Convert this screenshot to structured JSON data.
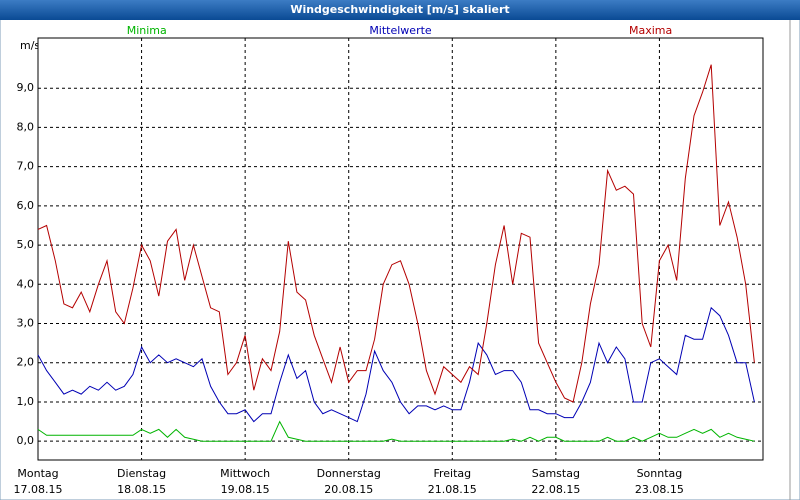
{
  "chart_data": {
    "type": "line",
    "title": "Windgeschwindigkeit [m/s] skaliert",
    "y_label": "m/s",
    "x": [
      0,
      2,
      4,
      6,
      8,
      10,
      12,
      14,
      16,
      18,
      20,
      22,
      24,
      26,
      28,
      30,
      32,
      34,
      36,
      38,
      40,
      42,
      44,
      46,
      48,
      50,
      52,
      54,
      56,
      58,
      60,
      62,
      64,
      66,
      68,
      70,
      72,
      74,
      76,
      78,
      80,
      82,
      84,
      86,
      88,
      90,
      92,
      94,
      96,
      98,
      100,
      102,
      104,
      106,
      108,
      110,
      112,
      114,
      116,
      118,
      120,
      122,
      124,
      126,
      128,
      130,
      132,
      134,
      136,
      138,
      140,
      142,
      144,
      146,
      148,
      150,
      152,
      154,
      156,
      158,
      160,
      162,
      164,
      166
    ],
    "xlim": [
      0,
      168
    ],
    "xticks": [
      {
        "value": 0,
        "label": "Montag"
      },
      {
        "value": 24,
        "label": "Dienstag"
      },
      {
        "value": 48,
        "label": "Mittwoch"
      },
      {
        "value": 72,
        "label": "Donnerstag"
      },
      {
        "value": 96,
        "label": "Freitag"
      },
      {
        "value": 120,
        "label": "Samstag"
      },
      {
        "value": 144,
        "label": "Sonntag"
      }
    ],
    "xtick_dates": [
      "17.08.15",
      "18.08.15",
      "19.08.15",
      "20.08.15",
      "21.08.15",
      "22.08.15",
      "23.08.15"
    ],
    "ylim": [
      -0.48,
      10.28
    ],
    "yticks": [
      {
        "value": 0,
        "label": "0,0"
      },
      {
        "value": 1,
        "label": "1,0"
      },
      {
        "value": 2,
        "label": "2,0"
      },
      {
        "value": 3,
        "label": "3,0"
      },
      {
        "value": 4,
        "label": "4,0"
      },
      {
        "value": 5,
        "label": "5,0"
      },
      {
        "value": 6,
        "label": "6,0"
      },
      {
        "value": 7,
        "label": "7,0"
      },
      {
        "value": 8,
        "label": "8,0"
      },
      {
        "value": 9,
        "label": "9,0"
      }
    ],
    "grid": true,
    "series": [
      {
        "name": "Minima",
        "color": "#00b400",
        "values": [
          0.3,
          0.15,
          0.15,
          0.15,
          0.15,
          0.15,
          0.15,
          0.15,
          0.15,
          0.15,
          0.15,
          0.15,
          0.3,
          0.2,
          0.3,
          0.1,
          0.3,
          0.1,
          0.05,
          0.0,
          0.0,
          0.0,
          0.0,
          0.0,
          0.0,
          0.0,
          0.0,
          0.0,
          0.5,
          0.1,
          0.05,
          0.0,
          0.0,
          0.0,
          0.0,
          0.0,
          0.0,
          0.0,
          0.0,
          0.0,
          0.0,
          0.05,
          0.0,
          0.0,
          0.0,
          0.0,
          0.0,
          0.0,
          0.0,
          0.0,
          0.0,
          0.0,
          0.0,
          0.0,
          0.0,
          0.05,
          0.0,
          0.1,
          0.0,
          0.1,
          0.1,
          0.0,
          0.0,
          0.0,
          0.0,
          0.0,
          0.1,
          0.0,
          0.0,
          0.1,
          0.0,
          0.1,
          0.2,
          0.1,
          0.1,
          0.2,
          0.3,
          0.2,
          0.3,
          0.1,
          0.2,
          0.1,
          0.05,
          0.0
        ]
      },
      {
        "name": "Mittelwerte",
        "color": "#0000b4",
        "values": [
          2.2,
          1.8,
          1.5,
          1.2,
          1.3,
          1.2,
          1.4,
          1.3,
          1.5,
          1.3,
          1.4,
          1.7,
          2.4,
          2.0,
          2.2,
          2.0,
          2.1,
          2.0,
          1.9,
          2.1,
          1.4,
          1.0,
          0.7,
          0.7,
          0.8,
          0.5,
          0.7,
          0.7,
          1.5,
          2.2,
          1.6,
          1.8,
          1.0,
          0.7,
          0.8,
          0.7,
          0.6,
          0.5,
          1.2,
          2.3,
          1.8,
          1.5,
          1.0,
          0.7,
          0.9,
          0.9,
          0.8,
          0.9,
          0.8,
          0.8,
          1.5,
          2.5,
          2.2,
          1.7,
          1.8,
          1.8,
          1.5,
          0.8,
          0.8,
          0.7,
          0.7,
          0.6,
          0.6,
          1.0,
          1.5,
          2.5,
          2.0,
          2.4,
          2.1,
          1.0,
          1.0,
          2.0,
          2.1,
          1.9,
          1.7,
          2.7,
          2.6,
          2.6,
          3.4,
          3.2,
          2.7,
          2.0,
          2.0,
          1.0
        ]
      },
      {
        "name": "Maxima",
        "color": "#b40000",
        "values": [
          5.4,
          5.5,
          4.6,
          3.5,
          3.4,
          3.8,
          3.3,
          4.0,
          4.6,
          3.3,
          3.0,
          3.9,
          5.0,
          4.6,
          3.7,
          5.1,
          5.4,
          4.1,
          5.0,
          4.2,
          3.4,
          3.3,
          1.7,
          2.0,
          2.7,
          1.3,
          2.1,
          1.8,
          2.8,
          5.1,
          3.8,
          3.6,
          2.7,
          2.1,
          1.5,
          2.4,
          1.5,
          1.8,
          1.8,
          2.6,
          4.0,
          4.5,
          4.6,
          4.0,
          3.0,
          1.8,
          1.2,
          1.9,
          1.7,
          1.5,
          1.9,
          1.7,
          3.0,
          4.5,
          5.5,
          4.0,
          5.3,
          5.2,
          2.5,
          2.0,
          1.5,
          1.1,
          1.0,
          2.0,
          3.5,
          4.5,
          6.9,
          6.4,
          6.5,
          6.3,
          3.0,
          2.4,
          4.6,
          5.0,
          4.1,
          6.7,
          8.3,
          8.9,
          9.6,
          5.5,
          6.1,
          5.2,
          4.0,
          2.0
        ]
      }
    ]
  }
}
